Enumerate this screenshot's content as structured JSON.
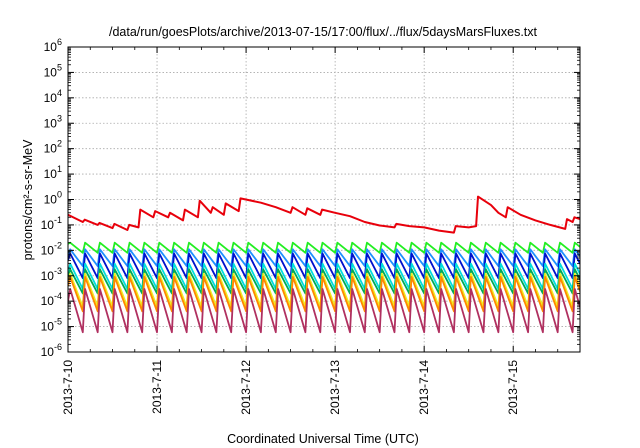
{
  "chart_data": {
    "type": "line",
    "title": "/data/run/goesPlots/archive/2013-07-15/17:00/flux/../flux/5daysMarsFluxes.txt",
    "xlabel": "Coordinated Universal Time (UTC)",
    "ylabel": "protons/cm²-s-sr-MeV",
    "yscale": "log",
    "ylim": [
      1e-06,
      1000000.0
    ],
    "y_ticks": [
      {
        "value": 1e-06,
        "mantissa": "10",
        "exp": "-6"
      },
      {
        "value": 1e-05,
        "mantissa": "10",
        "exp": "-5"
      },
      {
        "value": 0.0001,
        "mantissa": "10",
        "exp": "-4"
      },
      {
        "value": 0.001,
        "mantissa": "10",
        "exp": "-3"
      },
      {
        "value": 0.01,
        "mantissa": "10",
        "exp": "-2"
      },
      {
        "value": 0.1,
        "mantissa": "10",
        "exp": "-1"
      },
      {
        "value": 1,
        "mantissa": "10",
        "exp": "0"
      },
      {
        "value": 10.0,
        "mantissa": "10",
        "exp": "1"
      },
      {
        "value": 100.0,
        "mantissa": "10",
        "exp": "2"
      },
      {
        "value": 1000.0,
        "mantissa": "10",
        "exp": "3"
      },
      {
        "value": 10000.0,
        "mantissa": "10",
        "exp": "4"
      },
      {
        "value": 100000.0,
        "mantissa": "10",
        "exp": "5"
      },
      {
        "value": 1000000.0,
        "mantissa": "10",
        "exp": "6"
      }
    ],
    "xlim": [
      "2013-07-10",
      "2013-07-15 18:00"
    ],
    "x_ticks": [
      "2013-7-10",
      "2013-7-11",
      "2013-7-12",
      "2013-7-13",
      "2013-7-14",
      "2013-7-15"
    ],
    "grid": true,
    "series": [
      {
        "color": "#e8000b",
        "points": [
          [
            "2013-07-10 00:00",
            0.25
          ],
          [
            "2013-07-10 04:00",
            0.13
          ],
          [
            "2013-07-10 04:30",
            0.16
          ],
          [
            "2013-07-10 08:00",
            0.1
          ],
          [
            "2013-07-10 08:30",
            0.12
          ],
          [
            "2013-07-10 12:00",
            0.075
          ],
          [
            "2013-07-10 12:30",
            0.11
          ],
          [
            "2013-07-10 16:00",
            0.063
          ],
          [
            "2013-07-10 16:30",
            0.1
          ],
          [
            "2013-07-10 19:00",
            0.08
          ],
          [
            "2013-07-10 19:30",
            0.4
          ],
          [
            "2013-07-10 23:00",
            0.2
          ],
          [
            "2013-07-10 23:30",
            0.35
          ],
          [
            "2013-07-11 03:00",
            0.2
          ],
          [
            "2013-07-11 03:30",
            0.3
          ],
          [
            "2013-07-11 07:00",
            0.15
          ],
          [
            "2013-07-11 07:30",
            0.4
          ],
          [
            "2013-07-11 11:00",
            0.2
          ],
          [
            "2013-07-11 11:30",
            0.9
          ],
          [
            "2013-07-11 14:30",
            0.3
          ],
          [
            "2013-07-11 15:00",
            0.5
          ],
          [
            "2013-07-11 18:00",
            0.25
          ],
          [
            "2013-07-11 18:30",
            0.7
          ],
          [
            "2013-07-11 22:00",
            0.35
          ],
          [
            "2013-07-11 22:30",
            1.1
          ],
          [
            "2013-07-12 04:00",
            0.75
          ],
          [
            "2013-07-12 08:00",
            0.5
          ],
          [
            "2013-07-12 12:00",
            0.3
          ],
          [
            "2013-07-12 12:30",
            0.5
          ],
          [
            "2013-07-12 16:00",
            0.25
          ],
          [
            "2013-07-12 16:30",
            0.45
          ],
          [
            "2013-07-12 20:00",
            0.25
          ],
          [
            "2013-07-12 20:30",
            0.4
          ],
          [
            "2013-07-13 00:00",
            0.3
          ],
          [
            "2013-07-13 04:00",
            0.22
          ],
          [
            "2013-07-13 08:00",
            0.13
          ],
          [
            "2013-07-13 12:00",
            0.095
          ],
          [
            "2013-07-13 16:00",
            0.08
          ],
          [
            "2013-07-13 16:30",
            0.11
          ],
          [
            "2013-07-13 20:00",
            0.09
          ],
          [
            "2013-07-14 00:00",
            0.08
          ],
          [
            "2013-07-14 04:00",
            0.06
          ],
          [
            "2013-07-14 08:00",
            0.05
          ],
          [
            "2013-07-14 08:30",
            0.09
          ],
          [
            "2013-07-14 12:00",
            0.08
          ],
          [
            "2013-07-14 14:00",
            0.09
          ],
          [
            "2013-07-14 14:30",
            1.3
          ],
          [
            "2013-07-14 18:00",
            0.6
          ],
          [
            "2013-07-14 20:00",
            0.3
          ],
          [
            "2013-07-14 22:00",
            0.2
          ],
          [
            "2013-07-14 22:30",
            0.5
          ],
          [
            "2013-07-15 02:00",
            0.25
          ],
          [
            "2013-07-15 06:00",
            0.15
          ],
          [
            "2013-07-15 10:00",
            0.1
          ],
          [
            "2013-07-15 14:00",
            0.07
          ],
          [
            "2013-07-15 14:30",
            0.17
          ],
          [
            "2013-07-15 16:00",
            0.13
          ],
          [
            "2013-07-15 16:30",
            0.2
          ],
          [
            "2013-07-15 18:00",
            0.17
          ]
        ]
      },
      {
        "color": "#22ee22",
        "shape": "sawtooth",
        "high": 0.02,
        "low": 0.008,
        "start": 0.018
      },
      {
        "color": "#1e90ff",
        "shape": "sawtooth",
        "high": 0.011,
        "low": 0.0024,
        "start": 0.006
      },
      {
        "color": "#0011cc",
        "shape": "sawtooth",
        "high": 0.0075,
        "low": 0.0008,
        "start": 0.004
      },
      {
        "color": "#00dddd",
        "shape": "sawtooth",
        "high": 0.003,
        "low": 0.0003,
        "start": 0.0012
      },
      {
        "color": "#00aa55",
        "shape": "sawtooth",
        "high": 0.0018,
        "low": 0.0002,
        "start": 0.0008
      },
      {
        "color": "#eeee22",
        "shape": "sawtooth",
        "high": 0.0012,
        "low": 6e-05,
        "start": 0.0006
      },
      {
        "color": "#ff8800",
        "shape": "sawtooth",
        "high": 0.0009,
        "low": 4e-05,
        "start": 0.0004
      },
      {
        "color": "#b03060",
        "shape": "sawtooth",
        "high": 0.0003,
        "low": 6e-06,
        "start": 0.0001
      }
    ]
  }
}
